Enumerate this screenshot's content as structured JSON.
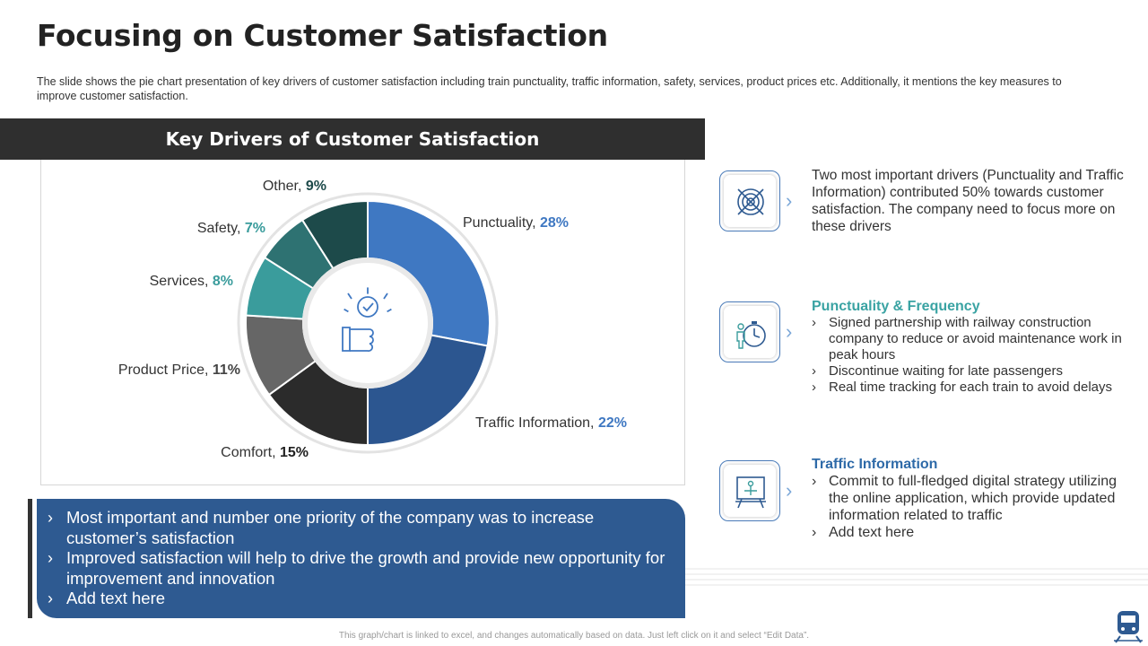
{
  "page": {
    "title": "Focusing on Customer Satisfaction",
    "subtitle": "The slide shows the pie chart presentation of key drivers of customer satisfaction including train punctuality, traffic information, safety, services, product prices etc. Additionally, it mentions the key measures to improve customer satisfaction.",
    "banner": "Key Drivers of Customer Satisfaction",
    "footer": "This graph/chart is linked to excel, and changes automatically based on data. Just left click on it and select “Edit Data”."
  },
  "chart_data": {
    "type": "pie",
    "title": "Key Drivers of Customer Satisfaction",
    "categories": [
      "Punctuality",
      "Traffic Information",
      "Comfort",
      "Product Price",
      "Services",
      "Safety",
      "Other"
    ],
    "values": [
      28,
      22,
      15,
      11,
      8,
      7,
      9
    ],
    "value_labels": [
      "28%",
      "22%",
      "15%",
      "11%",
      "8%",
      "7%",
      "9%"
    ],
    "colors": [
      "#3f78c2",
      "#2c5690",
      "#2b2b2b",
      "#666666",
      "#3a9c9c",
      "#2e7272",
      "#1d4a4a"
    ],
    "label_colors": [
      "#3f78c2",
      "#3f78c2",
      "#222222",
      "#444444",
      "#3a9c9c",
      "#3a9c9c",
      "#1d4a4a"
    ],
    "center_icon": "thumbs-up-check-icon"
  },
  "bottom_box": {
    "bullets": [
      "Most important and number one priority of the company was to increase customer’s satisfaction",
      "Improved satisfaction will help to drive the growth and provide new opportunity for improvement and innovation",
      "Add text here"
    ]
  },
  "right": {
    "item1": {
      "icon": "target-icon",
      "text": "Two most important drivers (Punctuality  and Traffic Information)  contributed 50% towards customer satisfaction. The company need to focus more on these drivers"
    },
    "item2": {
      "icon": "stopwatch-person-icon",
      "heading": "Punctuality & Frequency",
      "bullets": [
        "Signed partnership with railway construction company to reduce or avoid maintenance work in peak hours",
        "Discontinue waiting for late passengers",
        "Real time tracking for each train to avoid delays"
      ]
    },
    "item3": {
      "icon": "presentation-board-icon",
      "heading": "Traffic Information",
      "bullets": [
        "Commit to full-fledged digital strategy utilizing the online application, which provide updated information related to traffic",
        "Add text here"
      ]
    }
  }
}
